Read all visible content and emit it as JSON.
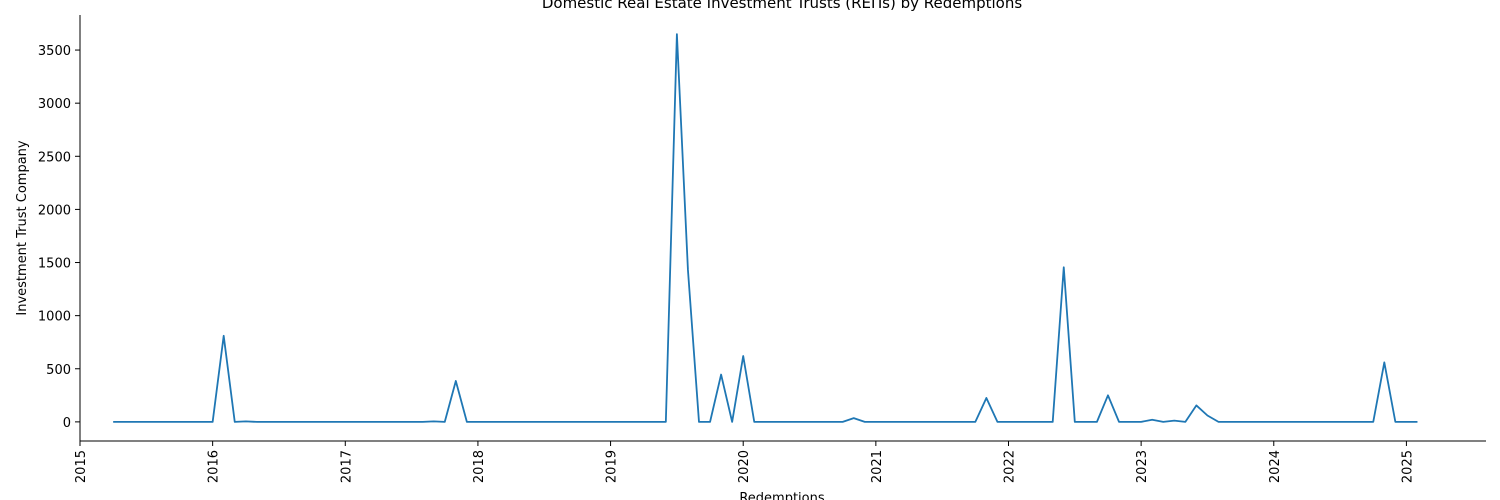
{
  "chart_data": {
    "type": "line",
    "title": "Domestic Real Estate Investment Trusts (REITs) by Redemptions",
    "xlabel": "Redemptions",
    "ylabel": "Investment Trust Company",
    "xlim": [
      2015.0,
      2025.6
    ],
    "ylim": [
      -180,
      3830
    ],
    "x_ticks": [
      2015,
      2016,
      2017,
      2018,
      2019,
      2020,
      2021,
      2022,
      2023,
      2024,
      2025
    ],
    "y_ticks": [
      0,
      500,
      1000,
      1500,
      2000,
      2500,
      3000,
      3500
    ],
    "grid": false,
    "legend": "none",
    "series": [
      {
        "color": "#1f77b4",
        "points": [
          [
            "2015-04",
            0
          ],
          [
            "2015-05",
            0
          ],
          [
            "2015-06",
            0
          ],
          [
            "2015-07",
            0
          ],
          [
            "2015-08",
            0
          ],
          [
            "2015-09",
            0
          ],
          [
            "2015-10",
            0
          ],
          [
            "2015-11",
            0
          ],
          [
            "2015-12",
            0
          ],
          [
            "2016-01",
            0
          ],
          [
            "2016-02",
            810
          ],
          [
            "2016-03",
            0
          ],
          [
            "2016-04",
            5
          ],
          [
            "2016-05",
            0
          ],
          [
            "2016-06",
            0
          ],
          [
            "2016-07",
            0
          ],
          [
            "2016-08",
            0
          ],
          [
            "2016-09",
            0
          ],
          [
            "2016-10",
            0
          ],
          [
            "2016-11",
            0
          ],
          [
            "2016-12",
            0
          ],
          [
            "2017-01",
            0
          ],
          [
            "2017-02",
            0
          ],
          [
            "2017-03",
            0
          ],
          [
            "2017-04",
            0
          ],
          [
            "2017-05",
            0
          ],
          [
            "2017-06",
            0
          ],
          [
            "2017-07",
            0
          ],
          [
            "2017-08",
            0
          ],
          [
            "2017-09",
            5
          ],
          [
            "2017-10",
            0
          ],
          [
            "2017-11",
            385
          ],
          [
            "2017-12",
            0
          ],
          [
            "2018-01",
            0
          ],
          [
            "2018-02",
            0
          ],
          [
            "2018-03",
            0
          ],
          [
            "2018-04",
            0
          ],
          [
            "2018-05",
            0
          ],
          [
            "2018-06",
            0
          ],
          [
            "2018-07",
            0
          ],
          [
            "2018-08",
            0
          ],
          [
            "2018-09",
            0
          ],
          [
            "2018-10",
            0
          ],
          [
            "2018-11",
            0
          ],
          [
            "2018-12",
            0
          ],
          [
            "2019-01",
            0
          ],
          [
            "2019-02",
            0
          ],
          [
            "2019-03",
            0
          ],
          [
            "2019-04",
            0
          ],
          [
            "2019-05",
            0
          ],
          [
            "2019-06",
            0
          ],
          [
            "2019-07",
            3650
          ],
          [
            "2019-08",
            1430
          ],
          [
            "2019-09",
            0
          ],
          [
            "2019-10",
            0
          ],
          [
            "2019-11",
            445
          ],
          [
            "2019-12",
            0
          ],
          [
            "2020-01",
            620
          ],
          [
            "2020-02",
            0
          ],
          [
            "2020-03",
            0
          ],
          [
            "2020-04",
            0
          ],
          [
            "2020-05",
            0
          ],
          [
            "2020-06",
            0
          ],
          [
            "2020-07",
            0
          ],
          [
            "2020-08",
            0
          ],
          [
            "2020-09",
            0
          ],
          [
            "2020-10",
            0
          ],
          [
            "2020-11",
            35
          ],
          [
            "2020-12",
            0
          ],
          [
            "2021-01",
            0
          ],
          [
            "2021-02",
            0
          ],
          [
            "2021-03",
            0
          ],
          [
            "2021-04",
            0
          ],
          [
            "2021-05",
            0
          ],
          [
            "2021-06",
            0
          ],
          [
            "2021-07",
            0
          ],
          [
            "2021-08",
            0
          ],
          [
            "2021-09",
            0
          ],
          [
            "2021-10",
            0
          ],
          [
            "2021-11",
            225
          ],
          [
            "2021-12",
            0
          ],
          [
            "2022-01",
            0
          ],
          [
            "2022-02",
            0
          ],
          [
            "2022-03",
            0
          ],
          [
            "2022-04",
            0
          ],
          [
            "2022-05",
            0
          ],
          [
            "2022-06",
            1455
          ],
          [
            "2022-07",
            0
          ],
          [
            "2022-08",
            0
          ],
          [
            "2022-09",
            0
          ],
          [
            "2022-10",
            250
          ],
          [
            "2022-11",
            0
          ],
          [
            "2022-12",
            0
          ],
          [
            "2023-01",
            0
          ],
          [
            "2023-02",
            20
          ],
          [
            "2023-03",
            0
          ],
          [
            "2023-04",
            12
          ],
          [
            "2023-05",
            0
          ],
          [
            "2023-06",
            155
          ],
          [
            "2023-07",
            60
          ],
          [
            "2023-08",
            0
          ],
          [
            "2023-09",
            0
          ],
          [
            "2023-10",
            0
          ],
          [
            "2023-11",
            0
          ],
          [
            "2023-12",
            0
          ],
          [
            "2024-01",
            0
          ],
          [
            "2024-02",
            0
          ],
          [
            "2024-03",
            0
          ],
          [
            "2024-04",
            0
          ],
          [
            "2024-05",
            0
          ],
          [
            "2024-06",
            0
          ],
          [
            "2024-07",
            0
          ],
          [
            "2024-08",
            0
          ],
          [
            "2024-09",
            0
          ],
          [
            "2024-10",
            0
          ],
          [
            "2024-11",
            560
          ],
          [
            "2024-12",
            0
          ],
          [
            "2025-01",
            0
          ],
          [
            "2025-02",
            0
          ]
        ]
      }
    ]
  }
}
